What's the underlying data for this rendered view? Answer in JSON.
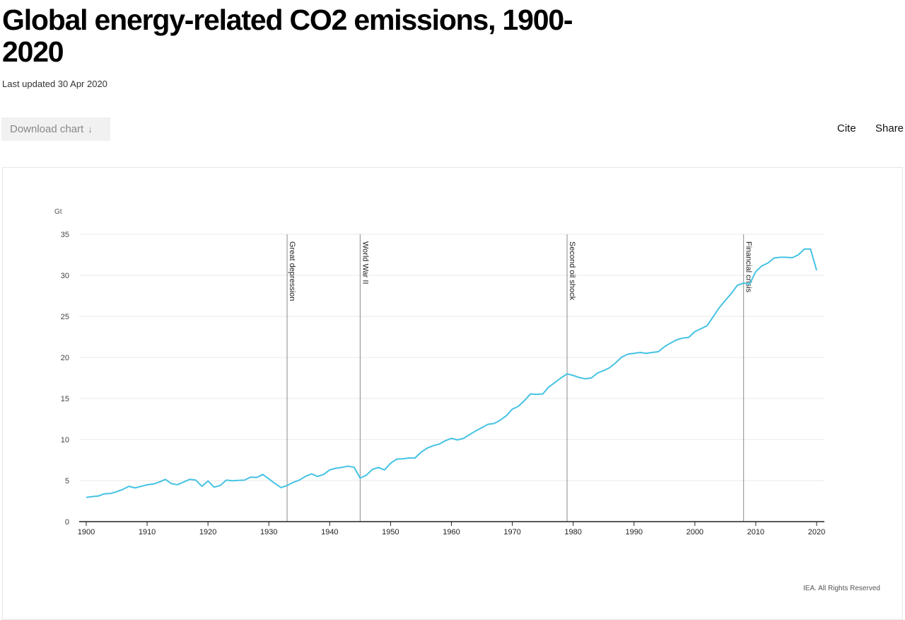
{
  "page": {
    "title": "Global energy-related CO2 emissions, 1900-2020",
    "last_updated": "Last updated 30 Apr 2020",
    "download_label": "Download chart",
    "download_icon": "arrow-down-icon",
    "download_arrow": "↓",
    "cite_label": "Cite",
    "share_label": "Share",
    "copyright": "IEA. All Rights Reserved"
  },
  "colors": {
    "line": "#45c3e3",
    "grid": "#e8e8e8",
    "event_line": "#8a8a8a",
    "axis": "#222222"
  },
  "chart_data": {
    "type": "line",
    "title": "Global energy-related CO2 emissions, 1900-2020",
    "xlabel": "",
    "ylabel": "Gt",
    "xlim": [
      1900,
      2020
    ],
    "ylim": [
      0,
      35
    ],
    "grid": true,
    "legend": "none",
    "x_ticks": [
      1900,
      1910,
      1920,
      1930,
      1940,
      1950,
      1960,
      1970,
      1980,
      1990,
      2000,
      2010,
      2020
    ],
    "y_ticks": [
      0,
      5,
      10,
      15,
      20,
      25,
      30,
      35
    ],
    "annotations": [
      {
        "x": 1933,
        "label": "Great depression"
      },
      {
        "x": 1945,
        "label": "World War II"
      },
      {
        "x": 1979,
        "label": "Second oil shock"
      },
      {
        "x": 2008,
        "label": "Financial crisis"
      }
    ],
    "series": [
      {
        "name": "Global energy-related CO2 emissions",
        "x": [
          1900,
          1901,
          1902,
          1903,
          1904,
          1905,
          1906,
          1907,
          1908,
          1909,
          1910,
          1911,
          1912,
          1913,
          1914,
          1915,
          1916,
          1917,
          1918,
          1919,
          1920,
          1921,
          1922,
          1923,
          1924,
          1925,
          1926,
          1927,
          1928,
          1929,
          1930,
          1931,
          1932,
          1933,
          1934,
          1935,
          1936,
          1937,
          1938,
          1939,
          1940,
          1941,
          1942,
          1943,
          1944,
          1945,
          1946,
          1947,
          1948,
          1949,
          1950,
          1951,
          1952,
          1953,
          1954,
          1955,
          1956,
          1957,
          1958,
          1959,
          1960,
          1961,
          1962,
          1963,
          1964,
          1965,
          1966,
          1967,
          1968,
          1969,
          1970,
          1971,
          1972,
          1973,
          1974,
          1975,
          1976,
          1977,
          1978,
          1979,
          1980,
          1981,
          1982,
          1983,
          1984,
          1985,
          1986,
          1987,
          1988,
          1989,
          1990,
          1991,
          1992,
          1993,
          1994,
          1995,
          1996,
          1997,
          1998,
          1999,
          2000,
          2001,
          2002,
          2003,
          2004,
          2005,
          2006,
          2007,
          2008,
          2009,
          2010,
          2011,
          2012,
          2013,
          2014,
          2015,
          2016,
          2017,
          2018,
          2019,
          2020
        ],
        "values": [
          2.95,
          3.05,
          3.12,
          3.4,
          3.42,
          3.65,
          3.92,
          4.3,
          4.1,
          4.3,
          4.48,
          4.58,
          4.82,
          5.15,
          4.62,
          4.5,
          4.82,
          5.15,
          5.05,
          4.3,
          4.95,
          4.2,
          4.4,
          5.05,
          4.98,
          5.02,
          5.05,
          5.42,
          5.38,
          5.75,
          5.2,
          4.65,
          4.15,
          4.4,
          4.78,
          5.05,
          5.5,
          5.82,
          5.5,
          5.75,
          6.3,
          6.5,
          6.6,
          6.75,
          6.62,
          5.3,
          5.65,
          6.35,
          6.6,
          6.3,
          7.1,
          7.6,
          7.65,
          7.75,
          7.75,
          8.45,
          8.95,
          9.25,
          9.45,
          9.85,
          10.15,
          9.95,
          10.15,
          10.6,
          11.05,
          11.45,
          11.85,
          11.95,
          12.35,
          12.9,
          13.7,
          14.05,
          14.75,
          15.55,
          15.5,
          15.55,
          16.4,
          16.95,
          17.5,
          18.0,
          17.8,
          17.55,
          17.4,
          17.5,
          18.1,
          18.4,
          18.75,
          19.35,
          20.05,
          20.4,
          20.5,
          20.6,
          20.5,
          20.6,
          20.7,
          21.3,
          21.75,
          22.15,
          22.35,
          22.45,
          23.15,
          23.5,
          23.85,
          24.95,
          26.05,
          26.95,
          27.8,
          28.8,
          29.05,
          28.95,
          30.45,
          31.15,
          31.5,
          32.1,
          32.2,
          32.2,
          32.15,
          32.5,
          33.2,
          33.2,
          30.6
        ]
      }
    ]
  }
}
